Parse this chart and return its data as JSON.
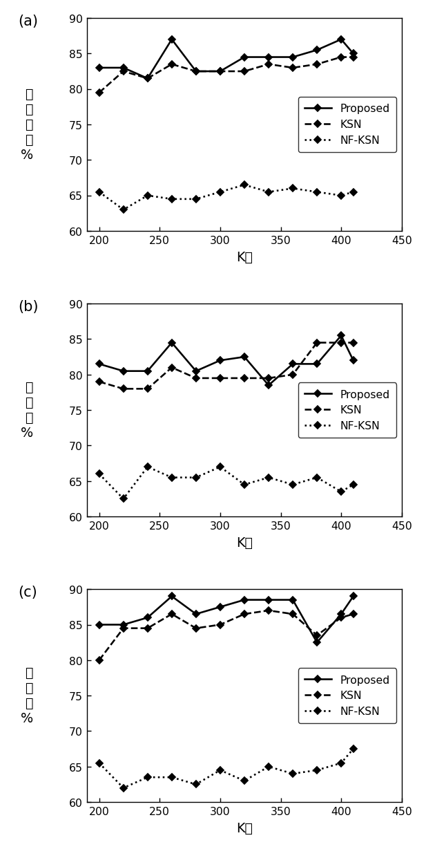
{
  "x_values": [
    200,
    220,
    240,
    260,
    280,
    300,
    320,
    340,
    360,
    380,
    400,
    410
  ],
  "xlim": [
    190,
    450
  ],
  "ylim": [
    60,
    90
  ],
  "xticks": [
    200,
    250,
    300,
    350,
    400,
    450
  ],
  "yticks": [
    60,
    65,
    70,
    75,
    80,
    85,
    90
  ],
  "subplot_a": {
    "ylabel": "分\n类\n精\n度\n%",
    "xlabel": "K値",
    "label": "(a)",
    "proposed": [
      83.0,
      83.0,
      81.5,
      87.0,
      82.5,
      82.5,
      84.5,
      84.5,
      84.5,
      85.5,
      87.0,
      85.0
    ],
    "ksn": [
      79.5,
      82.5,
      81.5,
      83.5,
      82.5,
      82.5,
      82.5,
      83.5,
      83.0,
      83.5,
      84.5,
      84.5
    ],
    "nfksn": [
      65.5,
      63.0,
      65.0,
      64.5,
      64.5,
      65.5,
      66.5,
      65.5,
      66.0,
      65.5,
      65.0,
      65.5
    ]
  },
  "subplot_b": {
    "ylabel": "特\n异\n度\n%",
    "xlabel": "K値",
    "label": "(b)",
    "proposed": [
      81.5,
      80.5,
      80.5,
      84.5,
      80.5,
      82.0,
      82.5,
      78.5,
      81.5,
      81.5,
      85.5,
      82.0
    ],
    "ksn": [
      79.0,
      78.0,
      78.0,
      81.0,
      79.5,
      79.5,
      79.5,
      79.5,
      80.0,
      84.5,
      84.5,
      84.5
    ],
    "nfksn": [
      66.0,
      62.5,
      67.0,
      65.5,
      65.5,
      67.0,
      64.5,
      65.5,
      64.5,
      65.5,
      63.5,
      64.5
    ]
  },
  "subplot_c": {
    "ylabel": "灵\n敏\n度\n%",
    "xlabel": "K値",
    "label": "(c)",
    "proposed": [
      85.0,
      85.0,
      86.0,
      89.0,
      86.5,
      87.5,
      88.5,
      88.5,
      88.5,
      82.5,
      86.5,
      89.0
    ],
    "ksn": [
      80.0,
      84.5,
      84.5,
      86.5,
      84.5,
      85.0,
      86.5,
      87.0,
      86.5,
      83.5,
      86.0,
      86.5
    ],
    "nfksn": [
      65.5,
      62.0,
      63.5,
      63.5,
      62.5,
      64.5,
      63.0,
      65.0,
      64.0,
      64.5,
      65.5,
      67.5
    ]
  },
  "legend_labels": [
    "Proposed",
    "KSN",
    "NF-KSN"
  ],
  "figsize": [
    4.94,
    9.83
  ],
  "dpi": 125
}
